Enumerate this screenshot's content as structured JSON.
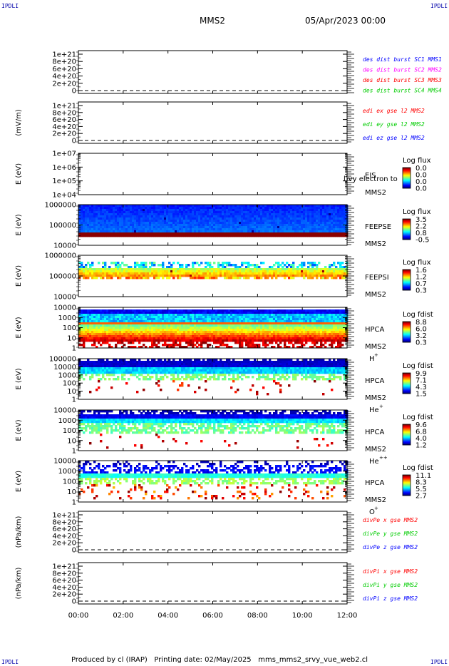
{
  "corner_labels": [
    "IPDLI",
    "IPDLI",
    "IPDLI",
    "IPDLI"
  ],
  "header": {
    "mission": "MMS2",
    "date": "05/Apr/2023 00:00"
  },
  "footer": {
    "produced_by": "Produced by cl (IRAP)",
    "printing_date": "Printing date: 02/May/2025",
    "script": "mms_mms2_srvy_vue_web2.cl"
  },
  "colors": {
    "blue": "#0000ff",
    "magenta": "#ff00ff",
    "red": "#ff0000",
    "green": "#00cc00"
  },
  "chart_data": [
    {
      "type": "line",
      "panel": "des_dist",
      "ylabel": "",
      "ylim": [
        0,
        1e+21
      ],
      "yticks": [
        "0",
        "2e+20",
        "4e+20",
        "6e+20",
        "8e+20",
        "1e+21"
      ],
      "series": [
        {
          "name": "des dist burst SC1 MMS1",
          "color": "#0000ff",
          "values": [
            0,
            0
          ]
        },
        {
          "name": "des dist burst SC2 MMS2",
          "color": "#ff00ff",
          "values": [
            0,
            0
          ]
        },
        {
          "name": "des dist burst SC3 MMS3",
          "color": "#ff0000",
          "values": [
            0,
            0
          ]
        },
        {
          "name": "des dist burst SC4 MMS4",
          "color": "#00cc00",
          "values": [
            0,
            0
          ]
        }
      ]
    },
    {
      "type": "line",
      "panel": "edi_e",
      "ylabel": "(mV/m)",
      "ylim": [
        0,
        1e+21
      ],
      "yticks": [
        "0",
        "2e+20",
        "4e+20",
        "6e+20",
        "8e+20",
        "1e+21"
      ],
      "series": [
        {
          "name": "edi ex gse l2 MMS2",
          "color": "#ff0000",
          "values": [
            0,
            0
          ]
        },
        {
          "name": "edi ey gse l2 MMS2",
          "color": "#00cc00",
          "values": [
            0,
            0
          ]
        },
        {
          "name": "edi ez gse l2 MMS2",
          "color": "#0000ff",
          "values": [
            0,
            0
          ]
        }
      ]
    },
    {
      "type": "heatmap",
      "panel": "eis",
      "ylabel": "E (eV)",
      "yscale": "log",
      "yticks": [
        "1e+04",
        "1e+05",
        "1e+06",
        "1e+07"
      ],
      "instrument": [
        "EIS",
        "MMS2"
      ],
      "overlay_text": "l)vy electron to",
      "colorbar": {
        "title": "Log flux",
        "labels": [
          "0.0",
          "0.0",
          "0.0",
          "0.0"
        ]
      },
      "description": "empty"
    },
    {
      "type": "heatmap",
      "panel": "feepse",
      "ylabel": "E (eV)",
      "yscale": "log",
      "yticks": [
        "10000",
        "100000",
        "1000000"
      ],
      "instrument": [
        "FEEPSE",
        "MMS2"
      ],
      "colorbar": {
        "title": "Log flux",
        "labels": [
          "3.5",
          "2.2",
          "0.8",
          "-0.5"
        ]
      }
    },
    {
      "type": "heatmap",
      "panel": "feepsi",
      "ylabel": "E (eV)",
      "yscale": "log",
      "yticks": [
        "10000",
        "100000",
        "1000000"
      ],
      "instrument": [
        "FEEPSI",
        "MMS2"
      ],
      "colorbar": {
        "title": "Log flux",
        "labels": [
          "1.6",
          "1.2",
          "0.7",
          "0.3"
        ]
      }
    },
    {
      "type": "heatmap",
      "panel": "hpca_h",
      "ylabel": "E (eV)",
      "yscale": "log",
      "yticks": [
        "1",
        "10",
        "100",
        "1000",
        "10000"
      ],
      "instrument": [
        "HPCA",
        "MMS2"
      ],
      "species": "H",
      "species_sup": "+",
      "colorbar": {
        "title": "Log fdist",
        "labels": [
          "8.8",
          "6.0",
          "3.2",
          "0.3"
        ]
      }
    },
    {
      "type": "heatmap",
      "panel": "hpca_he",
      "ylabel": "E (eV)",
      "yscale": "log",
      "yticks": [
        "1",
        "10",
        "100",
        "1000",
        "10000",
        "100000"
      ],
      "instrument": [
        "HPCA",
        "MMS2"
      ],
      "species": "He",
      "species_sup": "+",
      "colorbar": {
        "title": "Log fdist",
        "labels": [
          "9.9",
          "7.1",
          "4.3",
          "1.5"
        ]
      }
    },
    {
      "type": "heatmap",
      "panel": "hpca_hepp",
      "ylabel": "E (eV)",
      "yscale": "log",
      "yticks": [
        "1",
        "10",
        "100",
        "1000",
        "10000"
      ],
      "instrument": [
        "HPCA",
        "MMS2"
      ],
      "species": "He",
      "species_sup": "++",
      "colorbar": {
        "title": "Log fdist",
        "labels": [
          "9.6",
          "6.8",
          "4.0",
          "1.2"
        ]
      }
    },
    {
      "type": "heatmap",
      "panel": "hpca_o",
      "ylabel": "E (eV)",
      "yscale": "log",
      "yticks": [
        "1",
        "10",
        "100",
        "1000",
        "10000"
      ],
      "instrument": [
        "HPCA",
        "MMS2"
      ],
      "species": "O",
      "species_sup": "+",
      "colorbar": {
        "title": "Log fdist",
        "labels": [
          "11.1",
          "8.3",
          "5.5",
          "2.7"
        ]
      }
    },
    {
      "type": "line",
      "panel": "divpe",
      "ylabel": "(nPa/km)",
      "ylim": [
        0,
        1e+21
      ],
      "yticks": [
        "0",
        "2e+20",
        "4e+20",
        "6e+20",
        "8e+20",
        "1e+21"
      ],
      "series": [
        {
          "name": "divPe x gse MMS2",
          "color": "#ff0000",
          "values": [
            0,
            0
          ]
        },
        {
          "name": "divPe y gse MMS2",
          "color": "#00cc00",
          "values": [
            0,
            0
          ]
        },
        {
          "name": "divPe z gse MMS2",
          "color": "#0000ff",
          "values": [
            0,
            0
          ]
        }
      ]
    },
    {
      "type": "line",
      "panel": "divpi",
      "ylabel": "(nPa/km)",
      "ylim": [
        0,
        1e+21
      ],
      "yticks": [
        "0",
        "2e+20",
        "4e+20",
        "6e+20",
        "8e+20",
        "1e+21"
      ],
      "series": [
        {
          "name": "divPi x gse MMS2",
          "color": "#ff0000",
          "values": [
            0,
            0
          ]
        },
        {
          "name": "divPi y gse MMS2",
          "color": "#00cc00",
          "values": [
            0,
            0
          ]
        },
        {
          "name": "divPi z gse MMS2",
          "color": "#0000ff",
          "values": [
            0,
            0
          ]
        }
      ]
    }
  ],
  "x_axis": {
    "ticks": [
      "00:00",
      "02:00",
      "04:00",
      "06:00",
      "08:00",
      "10:00",
      "12:00"
    ]
  }
}
